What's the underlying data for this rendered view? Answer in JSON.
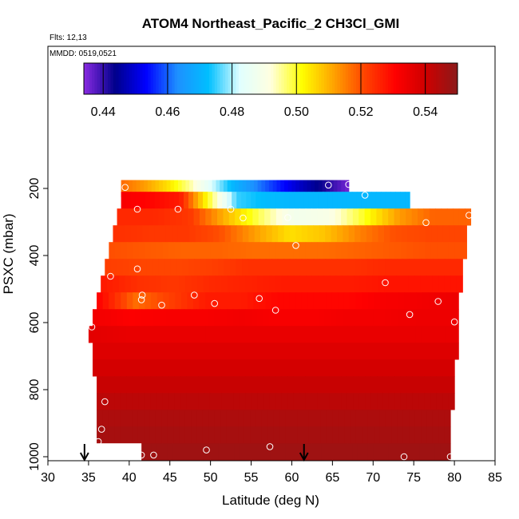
{
  "chart_data": {
    "type": "heatmap",
    "title": "ATOM4 Northeast_Pacific_2 CH3Cl_GMI",
    "flights_label": "Flts: 12,13",
    "dates_label": "MMDD: 0519,0521",
    "xlabel": "Latitude (deg N)",
    "ylabel": "PSXC (mbar)",
    "xlim": [
      30,
      85
    ],
    "ylim": [
      1000,
      50
    ],
    "y_reversed": true,
    "x_ticks": [
      30,
      35,
      40,
      45,
      50,
      55,
      60,
      65,
      70,
      75,
      80,
      85
    ],
    "y_ticks": [
      200,
      400,
      600,
      800,
      1000
    ],
    "grid": false,
    "colorbar": {
      "position": "top",
      "min": 0.434,
      "max": 0.55,
      "ticks": [
        "0.44",
        "0.46",
        "0.48",
        "0.50",
        "0.52",
        "0.54"
      ],
      "tick_values": [
        0.44,
        0.46,
        0.48,
        0.5,
        0.52,
        0.54
      ],
      "colors": [
        "#8a2be2",
        "#00008b",
        "#0000ff",
        "#1e90ff",
        "#00bfff",
        "#e0ffff",
        "#ffffe0",
        "#ffff00",
        "#ffa500",
        "#ff4500",
        "#ff0000",
        "#cd0000",
        "#8b1a1a"
      ]
    },
    "rows": [
      {
        "p": 200,
        "lat_min": 39.0,
        "lat_max": 67.0,
        "values": [
          0.517,
          0.512,
          0.505,
          0.495,
          0.482,
          0.47,
          0.462,
          0.455,
          0.448,
          0.442,
          0.436
        ]
      },
      {
        "p": 235,
        "lat_min": 39.0,
        "lat_max": 74.5,
        "values": [
          0.532,
          0.53,
          0.527,
          0.5,
          0.475,
          0.472,
          0.471,
          0.471,
          0.471,
          0.471,
          0.471
        ]
      },
      {
        "p": 285,
        "lat_min": 38.5,
        "lat_max": 82.0,
        "values": [
          0.525,
          0.525,
          0.523,
          0.51,
          0.498,
          0.488,
          0.49,
          0.5,
          0.512,
          0.518,
          0.518
        ]
      },
      {
        "p": 335,
        "lat_min": 38.0,
        "lat_max": 81.5,
        "values": [
          0.524,
          0.523,
          0.523,
          0.52,
          0.512,
          0.505,
          0.508,
          0.515,
          0.52,
          0.521,
          0.521
        ]
      },
      {
        "p": 385,
        "lat_min": 37.5,
        "lat_max": 81.5,
        "values": [
          0.52,
          0.519,
          0.518,
          0.518,
          0.517,
          0.517,
          0.517,
          0.518,
          0.519,
          0.52,
          0.52
        ]
      },
      {
        "p": 435,
        "lat_min": 37.0,
        "lat_max": 81.0,
        "values": [
          0.522,
          0.521,
          0.521,
          0.522,
          0.524,
          0.524,
          0.524,
          0.524,
          0.525,
          0.525,
          0.525
        ]
      },
      {
        "p": 485,
        "lat_min": 36.5,
        "lat_max": 81.0,
        "values": [
          0.527,
          0.524,
          0.523,
          0.525,
          0.526,
          0.527,
          0.527,
          0.527,
          0.528,
          0.528,
          0.528
        ]
      },
      {
        "p": 535,
        "lat_min": 36.0,
        "lat_max": 80.5,
        "values": [
          0.53,
          0.517,
          0.522,
          0.527,
          0.527,
          0.53,
          0.53,
          0.53,
          0.532,
          0.533,
          0.534
        ]
      },
      {
        "p": 585,
        "lat_min": 35.5,
        "lat_max": 80.5,
        "values": [
          0.533,
          0.531,
          0.532,
          0.532,
          0.533,
          0.532,
          0.532,
          0.533,
          0.533,
          0.534,
          0.534
        ]
      },
      {
        "p": 635,
        "lat_min": 35.0,
        "lat_max": 80.5,
        "values": [
          0.536,
          0.535,
          0.535,
          0.535,
          0.535,
          0.535,
          0.535,
          0.535,
          0.535,
          0.535,
          0.535
        ]
      },
      {
        "p": 685,
        "lat_min": 35.5,
        "lat_max": 80.5,
        "values": [
          0.537,
          0.537,
          0.537,
          0.537,
          0.537,
          0.537,
          0.537,
          0.537,
          0.537,
          0.537,
          0.537
        ]
      },
      {
        "p": 735,
        "lat_min": 35.5,
        "lat_max": 80.0,
        "values": [
          0.539,
          0.539,
          0.539,
          0.539,
          0.539,
          0.539,
          0.539,
          0.539,
          0.539,
          0.539,
          0.539
        ]
      },
      {
        "p": 785,
        "lat_min": 36.0,
        "lat_max": 80.0,
        "values": [
          0.541,
          0.541,
          0.541,
          0.541,
          0.541,
          0.541,
          0.541,
          0.541,
          0.541,
          0.541,
          0.541
        ]
      },
      {
        "p": 835,
        "lat_min": 36.0,
        "lat_max": 80.0,
        "values": [
          0.543,
          0.543,
          0.543,
          0.543,
          0.543,
          0.543,
          0.543,
          0.543,
          0.543,
          0.543,
          0.543
        ]
      },
      {
        "p": 885,
        "lat_min": 36.0,
        "lat_max": 79.5,
        "values": [
          0.545,
          0.545,
          0.545,
          0.545,
          0.545,
          0.545,
          0.545,
          0.545,
          0.545,
          0.545,
          0.545
        ]
      },
      {
        "p": 935,
        "lat_min": 36.0,
        "lat_max": 79.5,
        "values": [
          0.546,
          0.546,
          0.546,
          0.546,
          0.546,
          0.546,
          0.546,
          0.546,
          0.546,
          0.546,
          0.546
        ]
      },
      {
        "p": 985,
        "lat_min": 41.5,
        "lat_max": 79.5,
        "values": [
          0.547,
          0.547,
          0.547,
          0.547,
          0.547,
          0.547,
          0.547,
          0.547,
          0.547,
          0.547,
          0.547
        ]
      }
    ],
    "extra_cells": [
      {
        "p": 985,
        "lat_min": 36.0,
        "lat_max": 41.5,
        "note": "white"
      }
    ],
    "points": [
      {
        "lat": 39.5,
        "p": 197
      },
      {
        "lat": 64.5,
        "p": 190
      },
      {
        "lat": 67.0,
        "p": 188
      },
      {
        "lat": 69.0,
        "p": 220
      },
      {
        "lat": 41.0,
        "p": 262
      },
      {
        "lat": 46.0,
        "p": 262
      },
      {
        "lat": 52.5,
        "p": 262
      },
      {
        "lat": 54.0,
        "p": 288
      },
      {
        "lat": 59.5,
        "p": 287
      },
      {
        "lat": 76.5,
        "p": 302
      },
      {
        "lat": 81.8,
        "p": 280
      },
      {
        "lat": 60.5,
        "p": 370
      },
      {
        "lat": 41.0,
        "p": 440
      },
      {
        "lat": 37.7,
        "p": 462
      },
      {
        "lat": 71.5,
        "p": 481
      },
      {
        "lat": 41.6,
        "p": 518
      },
      {
        "lat": 41.5,
        "p": 532
      },
      {
        "lat": 48.0,
        "p": 518
      },
      {
        "lat": 44.0,
        "p": 548
      },
      {
        "lat": 50.5,
        "p": 543
      },
      {
        "lat": 56.0,
        "p": 528
      },
      {
        "lat": 58.0,
        "p": 563
      },
      {
        "lat": 78.0,
        "p": 537
      },
      {
        "lat": 74.5,
        "p": 576
      },
      {
        "lat": 80.0,
        "p": 598
      },
      {
        "lat": 35.4,
        "p": 613
      },
      {
        "lat": 37.0,
        "p": 836
      },
      {
        "lat": 36.6,
        "p": 918
      },
      {
        "lat": 36.2,
        "p": 955
      },
      {
        "lat": 49.5,
        "p": 980
      },
      {
        "lat": 57.3,
        "p": 970
      },
      {
        "lat": 41.5,
        "p": 995
      },
      {
        "lat": 43.0,
        "p": 995
      },
      {
        "lat": 73.8,
        "p": 1000
      },
      {
        "lat": 79.5,
        "p": 1000
      }
    ],
    "arrows": [
      {
        "lat": 34.5
      },
      {
        "lat": 61.5
      }
    ]
  }
}
